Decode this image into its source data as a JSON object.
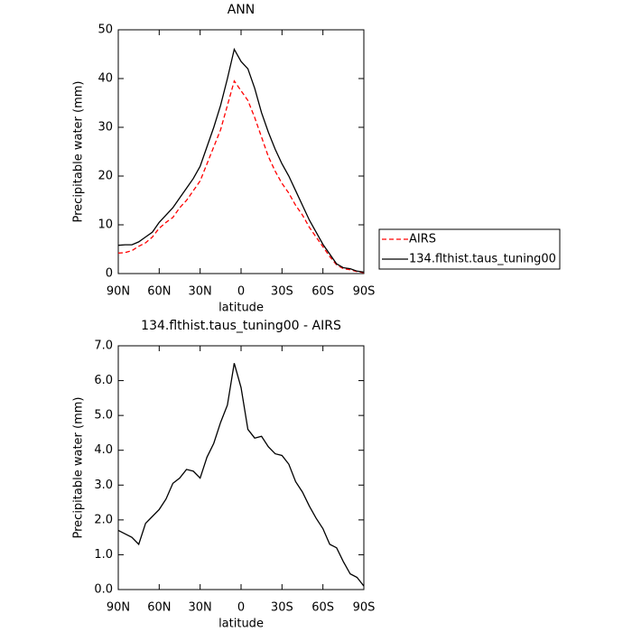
{
  "chart_data": [
    {
      "type": "line",
      "title": "ANN",
      "xlabel": "latitude",
      "ylabel": "Precipitable water (mm)",
      "x": [
        90,
        85,
        80,
        75,
        70,
        65,
        60,
        55,
        50,
        45,
        40,
        35,
        30,
        25,
        20,
        15,
        10,
        5,
        0,
        -5,
        -10,
        -15,
        -20,
        -25,
        -30,
        -35,
        -40,
        -45,
        -50,
        -55,
        -60,
        -65,
        -70,
        -75,
        -80,
        -85,
        -90
      ],
      "series": [
        {
          "name": "AIRS",
          "color": "#ff0000",
          "dash": true,
          "values": [
            4.2,
            4.3,
            4.7,
            5.6,
            6.3,
            7.5,
            9.3,
            10.5,
            11.5,
            13.5,
            15,
            17,
            19,
            22.5,
            26,
            29.5,
            34.5,
            39.5,
            37.5,
            35.5,
            32,
            28,
            24,
            21,
            18.5,
            16.5,
            14,
            12,
            9.5,
            7.5,
            5.5,
            3.5,
            1.8,
            1.0,
            0.8,
            0.4,
            0.2
          ]
        },
        {
          "name": "134.flthist.taus_tuning00",
          "color": "#000000",
          "dash": false,
          "values": [
            5.8,
            5.9,
            5.9,
            6.5,
            7.5,
            8.5,
            10.5,
            12,
            13.5,
            15.5,
            17.5,
            19.5,
            22,
            26,
            30,
            34.5,
            40,
            46,
            43.5,
            42,
            38,
            33,
            29,
            25.5,
            22.5,
            20,
            17,
            14,
            11,
            8.5,
            6,
            4,
            2,
            1.2,
            1.0,
            0.5,
            0.3
          ]
        }
      ],
      "xlim": [
        90,
        -90
      ],
      "xticks": [
        {
          "value": 90,
          "label": "90N"
        },
        {
          "value": 60,
          "label": "60N"
        },
        {
          "value": 30,
          "label": "30N"
        },
        0,
        {
          "value": -30,
          "label": "30S"
        },
        {
          "value": -60,
          "label": "60S"
        },
        {
          "value": -90,
          "label": "90S"
        }
      ],
      "ylim": [
        0,
        50
      ],
      "yticks": [
        0,
        10,
        20,
        30,
        40,
        50
      ],
      "legend": "right"
    },
    {
      "type": "line",
      "title": "134.flthist.taus_tuning00 - AIRS",
      "xlabel": "latitude",
      "ylabel": "Precipitable water (mm)",
      "x": [
        90,
        85,
        80,
        75,
        70,
        65,
        60,
        55,
        50,
        45,
        40,
        35,
        30,
        25,
        20,
        15,
        10,
        5,
        0,
        -5,
        -10,
        -15,
        -20,
        -25,
        -30,
        -35,
        -40,
        -45,
        -50,
        -55,
        -60,
        -65,
        -70,
        -75,
        -80,
        -85,
        -90
      ],
      "series": [
        {
          "color": "#000000",
          "dash": false,
          "values": [
            1.7,
            1.6,
            1.5,
            1.3,
            1.9,
            2.1,
            2.3,
            2.6,
            3.05,
            3.2,
            3.45,
            3.4,
            3.2,
            3.8,
            4.2,
            4.8,
            5.3,
            6.5,
            5.8,
            4.6,
            4.35,
            4.4,
            4.1,
            3.9,
            3.85,
            3.6,
            3.1,
            2.8,
            2.4,
            2.05,
            1.75,
            1.3,
            1.2,
            0.8,
            0.45,
            0.35,
            0.1
          ]
        }
      ],
      "xlim": [
        90,
        -90
      ],
      "xticks": [
        {
          "value": 90,
          "label": "90N"
        },
        {
          "value": 60,
          "label": "60N"
        },
        {
          "value": 30,
          "label": "30N"
        },
        0,
        {
          "value": -30,
          "label": "30S"
        },
        {
          "value": -60,
          "label": "60S"
        },
        {
          "value": -90,
          "label": "90S"
        }
      ],
      "ylim": [
        0,
        7
      ],
      "yticks": [
        {
          "value": 0,
          "label": "0.0"
        },
        {
          "value": 1,
          "label": "1.0"
        },
        {
          "value": 2,
          "label": "2.0"
        },
        {
          "value": 3,
          "label": "3.0"
        },
        {
          "value": 4,
          "label": "4.0"
        },
        {
          "value": 5,
          "label": "5.0"
        },
        {
          "value": 6,
          "label": "6.0"
        },
        {
          "value": 7,
          "label": "7.0"
        }
      ]
    }
  ]
}
